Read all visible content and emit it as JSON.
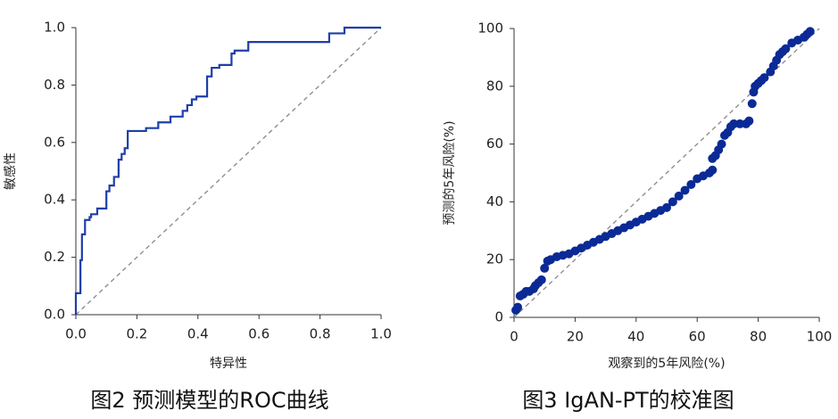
{
  "chart_data": [
    {
      "type": "line",
      "title": "图2 预测模型的ROC曲线",
      "xlabel": "特异性",
      "ylabel": "敏感性",
      "xlim": [
        0,
        1
      ],
      "ylim": [
        0,
        1
      ],
      "xticks": [
        {
          "value": 0,
          "label": "0.0"
        },
        0.2,
        0.4,
        0.6,
        0.8,
        {
          "value": 1,
          "label": "1.0"
        }
      ],
      "yticks": [
        {
          "value": 0,
          "label": "0.0"
        },
        0.2,
        0.4,
        0.6,
        0.8,
        {
          "value": 1,
          "label": "1.0"
        }
      ],
      "diagonal": true,
      "series": [
        {
          "color": "#1f3ea8",
          "x": [
            0,
            0,
            0.015,
            0.015,
            0.02,
            0.02,
            0.03,
            0.03,
            0.045,
            0.045,
            0.05,
            0.05,
            0.07,
            0.07,
            0.1,
            0.1,
            0.11,
            0.11,
            0.125,
            0.125,
            0.14,
            0.14,
            0.15,
            0.15,
            0.16,
            0.16,
            0.17,
            0.17,
            0.23,
            0.23,
            0.27,
            0.27,
            0.31,
            0.31,
            0.35,
            0.35,
            0.365,
            0.365,
            0.38,
            0.38,
            0.395,
            0.395,
            0.43,
            0.43,
            0.445,
            0.445,
            0.47,
            0.47,
            0.51,
            0.51,
            0.52,
            0.52,
            0.565,
            0.565,
            0.83,
            0.83,
            0.88,
            0.88,
            1
          ],
          "values": [
            0,
            0.075,
            0.075,
            0.19,
            0.19,
            0.28,
            0.28,
            0.33,
            0.33,
            0.34,
            0.34,
            0.35,
            0.35,
            0.37,
            0.37,
            0.43,
            0.43,
            0.45,
            0.45,
            0.48,
            0.48,
            0.54,
            0.54,
            0.56,
            0.56,
            0.58,
            0.58,
            0.64,
            0.64,
            0.65,
            0.65,
            0.67,
            0.67,
            0.69,
            0.69,
            0.71,
            0.71,
            0.73,
            0.73,
            0.75,
            0.75,
            0.76,
            0.76,
            0.83,
            0.83,
            0.86,
            0.86,
            0.87,
            0.87,
            0.91,
            0.91,
            0.92,
            0.92,
            0.95,
            0.95,
            0.98,
            0.98,
            1,
            1
          ]
        }
      ]
    },
    {
      "type": "scatter",
      "title": "图3 IgAN-PT的校准图",
      "xlabel": "观察到的5年风险(%)",
      "ylabel": "预测的5年风险(%)",
      "xlim": [
        0,
        100
      ],
      "ylim": [
        0,
        100
      ],
      "xticks": [
        0,
        20,
        40,
        60,
        80,
        100
      ],
      "yticks": [
        0,
        20,
        40,
        60,
        80,
        100
      ],
      "diagonal": true,
      "series": [
        {
          "color": "#0b2a96",
          "x": [
            0.6,
            1.2,
            2,
            3,
            4,
            5,
            6.4,
            7,
            8,
            9,
            10,
            11,
            12,
            14,
            16,
            18,
            20,
            22,
            24,
            26,
            28,
            30,
            32,
            34,
            36,
            38,
            40,
            42,
            44,
            46,
            48,
            50,
            52,
            54,
            56,
            58,
            60,
            62,
            64,
            65,
            65,
            66,
            67,
            68,
            69,
            70,
            71,
            72,
            74,
            76,
            77,
            78,
            78.5,
            79,
            80,
            81,
            82,
            84,
            85,
            86,
            87,
            88,
            89,
            91,
            93,
            95,
            96,
            97
          ],
          "values": [
            2.5,
            3.5,
            7.4,
            8,
            9,
            9,
            9.9,
            11,
            12,
            13,
            17,
            19.5,
            20,
            21,
            21.5,
            22,
            23,
            24,
            25,
            26,
            27,
            28,
            29,
            30,
            31,
            32,
            33,
            34,
            35,
            36,
            37,
            38,
            40,
            42,
            44,
            46,
            48,
            49,
            50,
            51,
            55,
            56,
            58,
            60,
            63,
            64,
            66,
            67,
            67,
            67,
            68,
            74,
            78,
            80,
            81,
            82,
            83,
            85,
            87,
            89,
            91,
            92,
            93,
            95,
            96,
            97,
            98,
            99
          ]
        }
      ]
    }
  ]
}
